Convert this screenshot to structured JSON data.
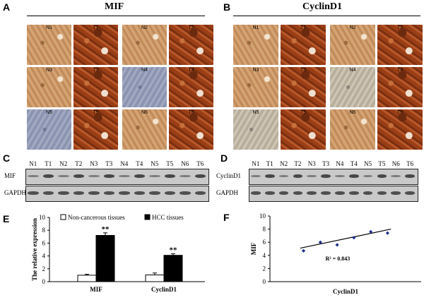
{
  "panels": {
    "A": {
      "letter": "A",
      "title": "MIF",
      "tiles": [
        "N1",
        "T1",
        "N2",
        "T2",
        "N3",
        "T3",
        "N4",
        "T4",
        "N5",
        "T5",
        "N6",
        "T6"
      ]
    },
    "B": {
      "letter": "B",
      "title": "CyclinD1",
      "tiles": [
        "N1",
        "T1",
        "N2",
        "T2",
        "N3",
        "T3",
        "N4",
        "T4",
        "N5",
        "T5",
        "N6",
        "T6"
      ]
    },
    "C": {
      "letter": "C",
      "lanes": [
        "N1",
        "T1",
        "N2",
        "T2",
        "N3",
        "T3",
        "N4",
        "T4",
        "N5",
        "T5",
        "N6",
        "T6"
      ],
      "rows": [
        "MIF",
        "GAPDH"
      ]
    },
    "D": {
      "letter": "D",
      "lanes": [
        "N1",
        "T1",
        "N2",
        "T2",
        "N3",
        "T3",
        "N4",
        "T4",
        "N5",
        "T5",
        "N6",
        "T6"
      ],
      "rows": [
        "CyclinD1",
        "GAPDH"
      ]
    },
    "E": {
      "letter": "E"
    },
    "F": {
      "letter": "F"
    }
  },
  "colors": {
    "tumor_stain": "#9a3e16",
    "normal_stain": "#d4a374",
    "normal_blue": "#8b94b0",
    "blot_bg": "#c9c9c9",
    "band": "#3a3a3a"
  },
  "chart_data": [
    {
      "type": "bar",
      "panel": "E",
      "categories": [
        "MIF",
        "CyclinD1"
      ],
      "series": [
        {
          "name": "Non-cancerous tissues",
          "values": [
            1.0,
            1.05
          ],
          "errors": [
            0.15,
            0.3
          ],
          "color": "#ffffff"
        },
        {
          "name": "HCC tissues",
          "values": [
            7.2,
            4.1
          ],
          "errors": [
            0.4,
            0.25
          ],
          "color": "#000000"
        }
      ],
      "annotations": [
        "**",
        "**"
      ],
      "ylabel": "The relative expression",
      "xlabel": "",
      "ylim": [
        0,
        10
      ],
      "yticks": [
        0,
        2,
        4,
        6,
        8,
        10
      ],
      "legend": "top"
    },
    {
      "type": "scatter",
      "panel": "F",
      "points": [
        {
          "x": 1,
          "y": 4.7
        },
        {
          "x": 2,
          "y": 6.0
        },
        {
          "x": 3,
          "y": 5.6
        },
        {
          "x": 4,
          "y": 6.7
        },
        {
          "x": 5,
          "y": 7.6
        },
        {
          "x": 6,
          "y": 7.4
        }
      ],
      "fit": {
        "x0": 0.8,
        "y0": 5.1,
        "x1": 6.2,
        "y1": 8.0
      },
      "annotation": "R² = 0.843",
      "xlabel": "CyclinD1",
      "ylabel": "MIF",
      "xlim": [
        -1,
        8
      ],
      "ylim": [
        0,
        10
      ],
      "yticks": [
        0,
        2,
        4,
        6,
        8,
        10
      ],
      "grid": false
    }
  ]
}
